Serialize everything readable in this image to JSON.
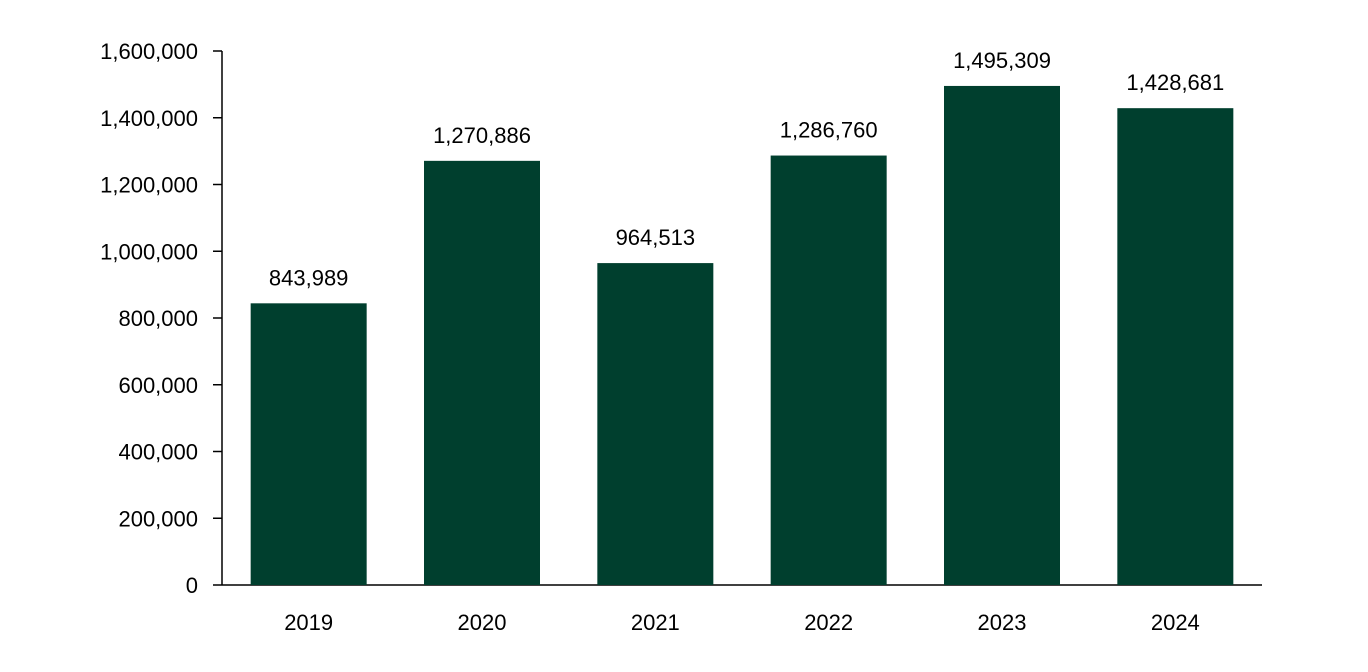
{
  "chart_data": {
    "type": "bar",
    "title": "",
    "xlabel": "",
    "ylabel": "",
    "categories": [
      "2019",
      "2020",
      "2021",
      "2022",
      "2023",
      "2024"
    ],
    "values": [
      843989,
      1270886,
      964513,
      1286760,
      1495309,
      1428681
    ],
    "data_labels": [
      "843,989",
      "1,270,886",
      "964,513",
      "1,286,760",
      "1,495,309",
      "1,428,681"
    ],
    "ylim": [
      0,
      1600000
    ],
    "yticks": [
      0,
      200000,
      400000,
      600000,
      800000,
      1000000,
      1200000,
      1400000,
      1600000
    ],
    "ytick_labels": [
      "0",
      "200,000",
      "400,000",
      "600,000",
      "800,000",
      "1,000,000",
      "1,200,000",
      "1,400,000",
      "1,600,000"
    ],
    "grid": false,
    "legend": "none",
    "bar_color": "#003f2e"
  }
}
